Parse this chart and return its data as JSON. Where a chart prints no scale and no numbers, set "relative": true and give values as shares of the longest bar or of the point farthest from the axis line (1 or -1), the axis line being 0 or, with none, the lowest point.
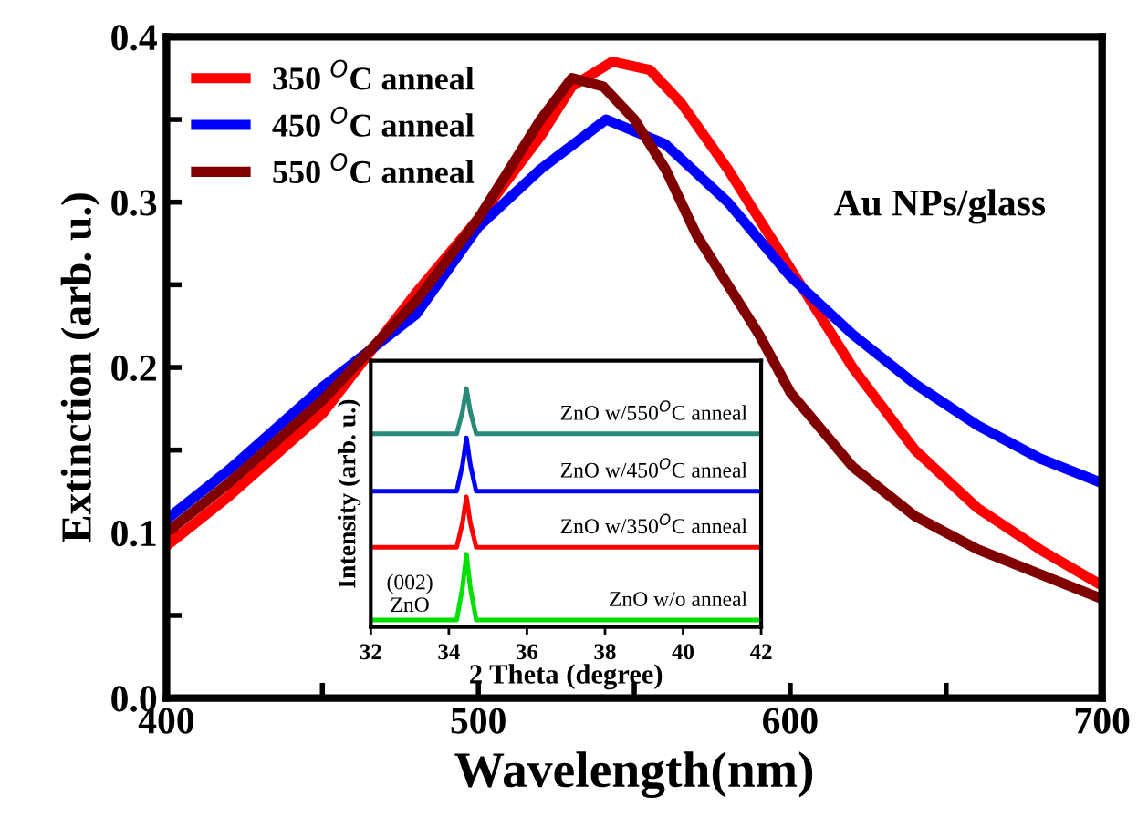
{
  "chart_data": [
    {
      "type": "line",
      "xlabel": "Wavelength(nm)",
      "ylabel": "Extinction (arb. u.)",
      "xlim": [
        400,
        700
      ],
      "ylim": [
        0.0,
        0.4
      ],
      "xticks": [
        400,
        {
          "value": 450,
          "label": null
        },
        500,
        {
          "value": 550,
          "label": null
        },
        600,
        {
          "value": 650,
          "label": null
        },
        700
      ],
      "yticks": [
        "0.0",
        {
          "value": 0.05,
          "label": null
        },
        {
          "value": 0.1,
          "label": "0.1"
        },
        {
          "value": 0.15,
          "label": null
        },
        {
          "value": 0.2,
          "label": "0.2"
        },
        {
          "value": 0.25,
          "label": null
        },
        {
          "value": 0.3,
          "label": "0.3"
        },
        {
          "value": 0.35,
          "label": null
        },
        {
          "value": 0.4,
          "label": "0.4"
        }
      ],
      "legend": "top left",
      "grid": false,
      "line_style": "solid",
      "marker": "none",
      "annotations": [
        "Au NPs/glass"
      ],
      "series": [
        {
          "name": "350 $^{O}$C anneal",
          "color": "#ff0000",
          "x": [
            400,
            420,
            450,
            480,
            500,
            520,
            530,
            543,
            555,
            565,
            580,
            600,
            620,
            640,
            660,
            680,
            700
          ],
          "values": [
            0.092,
            0.122,
            0.172,
            0.245,
            0.29,
            0.34,
            0.37,
            0.385,
            0.38,
            0.36,
            0.32,
            0.26,
            0.2,
            0.15,
            0.115,
            0.09,
            0.068
          ]
        },
        {
          "name": "450 $^{O}$C anneal",
          "color": "#0000ff",
          "x": [
            400,
            420,
            450,
            480,
            500,
            520,
            541,
            560,
            580,
            600,
            620,
            640,
            660,
            680,
            700
          ],
          "values": [
            0.108,
            0.138,
            0.188,
            0.232,
            0.285,
            0.32,
            0.35,
            0.335,
            0.3,
            0.255,
            0.22,
            0.19,
            0.165,
            0.145,
            0.13
          ]
        },
        {
          "name": "550 $^{O}$C anneal",
          "color": "#800000",
          "x": [
            400,
            420,
            450,
            480,
            500,
            510,
            520,
            530,
            540,
            550,
            560,
            570,
            580,
            590,
            600,
            620,
            640,
            660,
            680,
            700
          ],
          "values": [
            0.1,
            0.13,
            0.18,
            0.24,
            0.29,
            0.32,
            0.35,
            0.375,
            0.37,
            0.35,
            0.32,
            0.28,
            0.25,
            0.22,
            0.185,
            0.14,
            0.11,
            0.09,
            0.075,
            0.06
          ]
        }
      ]
    },
    {
      "type": "line",
      "xlabel": "2 Theta (degree)",
      "ylabel": "Intensity (arb. u.)",
      "relative": true,
      "xlim": [
        32,
        42
      ],
      "xticks": [
        32,
        34,
        36,
        38,
        40,
        42
      ],
      "legend": false,
      "grid": false,
      "annotations": [
        "(002)\nZnO"
      ],
      "series": [
        {
          "name": "ZnO w/550$^{O}$C anneal",
          "color": "#2a8a7a",
          "x": [
            32,
            34.2,
            34.35,
            34.45,
            34.55,
            34.7,
            42
          ],
          "values": [
            0.804,
            0.804,
            0.9,
            1.0,
            0.9,
            0.804,
            0.804
          ]
        },
        {
          "name": "ZnO w/450$^{O}$C anneal",
          "color": "#0000ff",
          "x": [
            32,
            34.2,
            34.35,
            34.45,
            34.55,
            34.7,
            42
          ],
          "values": [
            0.556,
            0.556,
            0.67,
            0.787,
            0.67,
            0.556,
            0.556
          ]
        },
        {
          "name": "ZnO w/350$^{O}$C anneal",
          "color": "#ff0000",
          "x": [
            32,
            34.2,
            34.35,
            34.45,
            34.55,
            34.7,
            42
          ],
          "values": [
            0.314,
            0.314,
            0.42,
            0.532,
            0.42,
            0.314,
            0.314
          ]
        },
        {
          "name": "ZnO w/o anneal",
          "color": "#00e000",
          "x": [
            32,
            34.2,
            34.35,
            34.45,
            34.55,
            34.7,
            42
          ],
          "values": [
            0.0,
            0.0,
            0.14,
            0.284,
            0.14,
            0.0,
            0.0
          ]
        }
      ]
    }
  ]
}
